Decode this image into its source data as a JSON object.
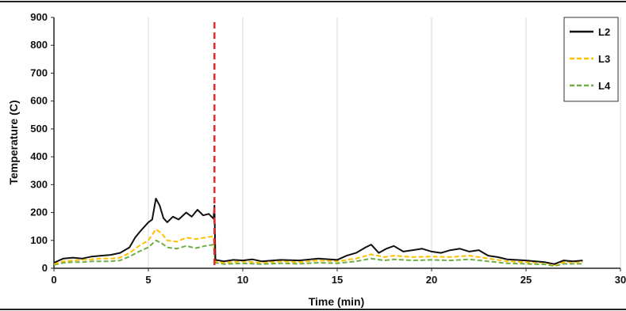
{
  "chart_data": {
    "type": "line",
    "title": "",
    "xlabel": "Time (min)",
    "ylabel": "Temperature (C)",
    "xlim": [
      0,
      30
    ],
    "ylim": [
      0,
      900
    ],
    "xticks": [
      0,
      5,
      10,
      15,
      20,
      25,
      30
    ],
    "yticks": [
      0,
      100,
      200,
      300,
      400,
      500,
      600,
      700,
      800,
      900
    ],
    "grid": "vertical",
    "legend_position": "top-right",
    "event_line": {
      "x": 8.5,
      "color": "#e8262b",
      "style": "dashed"
    },
    "series": [
      {
        "name": "L2",
        "color": "#111111",
        "dash": "solid",
        "points": [
          [
            0,
            20
          ],
          [
            0.5,
            35
          ],
          [
            1,
            38
          ],
          [
            1.5,
            35
          ],
          [
            2,
            42
          ],
          [
            2.5,
            45
          ],
          [
            3,
            48
          ],
          [
            3.5,
            55
          ],
          [
            4,
            75
          ],
          [
            4.3,
            110
          ],
          [
            4.6,
            135
          ],
          [
            5,
            165
          ],
          [
            5.2,
            175
          ],
          [
            5.4,
            250
          ],
          [
            5.6,
            225
          ],
          [
            5.8,
            180
          ],
          [
            6.0,
            165
          ],
          [
            6.3,
            185
          ],
          [
            6.6,
            175
          ],
          [
            7,
            200
          ],
          [
            7.3,
            185
          ],
          [
            7.6,
            210
          ],
          [
            7.9,
            190
          ],
          [
            8.2,
            195
          ],
          [
            8.45,
            178
          ],
          [
            8.5,
            225
          ],
          [
            8.55,
            30
          ],
          [
            9,
            25
          ],
          [
            9.5,
            30
          ],
          [
            10,
            28
          ],
          [
            10.5,
            32
          ],
          [
            11,
            25
          ],
          [
            12,
            30
          ],
          [
            13,
            28
          ],
          [
            14,
            35
          ],
          [
            15,
            30
          ],
          [
            15.5,
            45
          ],
          [
            16,
            55
          ],
          [
            16.5,
            75
          ],
          [
            16.8,
            85
          ],
          [
            17.2,
            55
          ],
          [
            17.6,
            70
          ],
          [
            18,
            80
          ],
          [
            18.5,
            60
          ],
          [
            19,
            65
          ],
          [
            19.5,
            70
          ],
          [
            20,
            60
          ],
          [
            20.5,
            55
          ],
          [
            21,
            65
          ],
          [
            21.5,
            70
          ],
          [
            22,
            60
          ],
          [
            22.5,
            65
          ],
          [
            23,
            45
          ],
          [
            23.5,
            40
          ],
          [
            24,
            32
          ],
          [
            25,
            28
          ],
          [
            25.5,
            25
          ],
          [
            26,
            22
          ],
          [
            26.5,
            15
          ],
          [
            27,
            28
          ],
          [
            27.5,
            25
          ],
          [
            28,
            28
          ]
        ]
      },
      {
        "name": "L3",
        "color": "#ffc000",
        "dash": "dashed",
        "points": [
          [
            0,
            15
          ],
          [
            0.5,
            25
          ],
          [
            1,
            28
          ],
          [
            1.5,
            30
          ],
          [
            2,
            32
          ],
          [
            2.5,
            35
          ],
          [
            3,
            35
          ],
          [
            3.5,
            38
          ],
          [
            4,
            55
          ],
          [
            4.5,
            80
          ],
          [
            5,
            100
          ],
          [
            5.4,
            140
          ],
          [
            5.7,
            125
          ],
          [
            6,
            100
          ],
          [
            6.5,
            95
          ],
          [
            7,
            110
          ],
          [
            7.5,
            105
          ],
          [
            8,
            110
          ],
          [
            8.45,
            115
          ],
          [
            8.55,
            25
          ],
          [
            9,
            20
          ],
          [
            10,
            25
          ],
          [
            11,
            20
          ],
          [
            12,
            25
          ],
          [
            13,
            22
          ],
          [
            14,
            28
          ],
          [
            15,
            25
          ],
          [
            16,
            35
          ],
          [
            16.8,
            50
          ],
          [
            17.5,
            40
          ],
          [
            18,
            45
          ],
          [
            19,
            40
          ],
          [
            20,
            42
          ],
          [
            21,
            40
          ],
          [
            22,
            45
          ],
          [
            23,
            35
          ],
          [
            24,
            25
          ],
          [
            25,
            22
          ],
          [
            26,
            20
          ],
          [
            26.5,
            12
          ],
          [
            27,
            22
          ],
          [
            28,
            22
          ]
        ]
      },
      {
        "name": "L4",
        "color": "#70ad47",
        "dash": "dashed",
        "points": [
          [
            0,
            12
          ],
          [
            0.5,
            20
          ],
          [
            1,
            22
          ],
          [
            1.5,
            22
          ],
          [
            2,
            25
          ],
          [
            2.5,
            25
          ],
          [
            3,
            25
          ],
          [
            3.5,
            28
          ],
          [
            4,
            42
          ],
          [
            4.5,
            60
          ],
          [
            5,
            75
          ],
          [
            5.4,
            100
          ],
          [
            5.7,
            90
          ],
          [
            6,
            75
          ],
          [
            6.5,
            70
          ],
          [
            7,
            80
          ],
          [
            7.5,
            72
          ],
          [
            8,
            80
          ],
          [
            8.45,
            85
          ],
          [
            8.55,
            20
          ],
          [
            9,
            15
          ],
          [
            10,
            18
          ],
          [
            11,
            15
          ],
          [
            12,
            18
          ],
          [
            13,
            16
          ],
          [
            14,
            20
          ],
          [
            15,
            18
          ],
          [
            16,
            25
          ],
          [
            16.8,
            35
          ],
          [
            17.5,
            28
          ],
          [
            18,
            32
          ],
          [
            19,
            28
          ],
          [
            20,
            30
          ],
          [
            21,
            28
          ],
          [
            22,
            32
          ],
          [
            23,
            25
          ],
          [
            24,
            18
          ],
          [
            25,
            16
          ],
          [
            26,
            14
          ],
          [
            26.5,
            8
          ],
          [
            27,
            16
          ],
          [
            28,
            16
          ]
        ]
      }
    ]
  }
}
